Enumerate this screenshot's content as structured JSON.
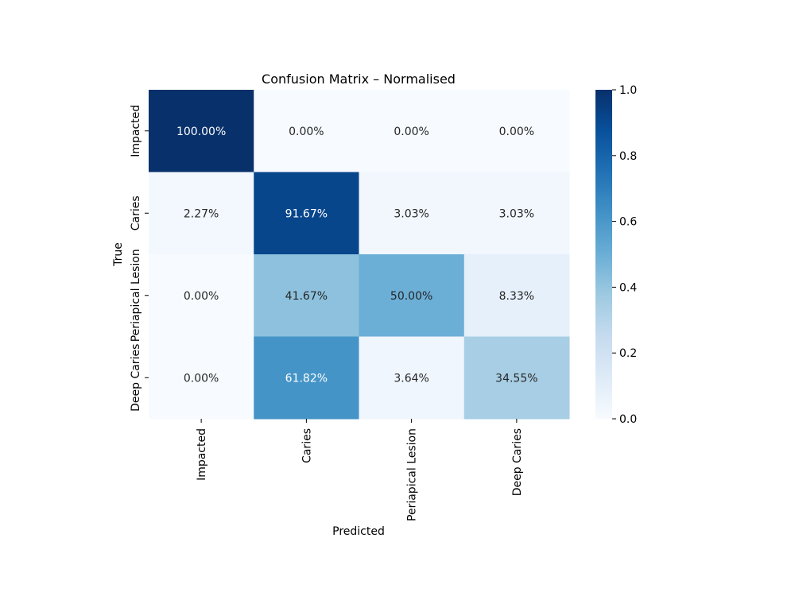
{
  "chart_data": {
    "type": "heatmap",
    "title": "Confusion Matrix – Normalised",
    "xlabel": "Predicted",
    "ylabel": "True",
    "x_categories": [
      "Impacted",
      "Caries",
      "Periapical Lesion",
      "Deep Caries"
    ],
    "y_categories": [
      "Impacted",
      "Caries",
      "Periapical Lesion",
      "Deep Caries"
    ],
    "values": [
      [
        1.0,
        0.0,
        0.0,
        0.0
      ],
      [
        0.0227,
        0.9167,
        0.0303,
        0.0303
      ],
      [
        0.0,
        0.4167,
        0.5,
        0.0833
      ],
      [
        0.0,
        0.6182,
        0.0364,
        0.3455
      ]
    ],
    "cell_labels": [
      [
        "100.00%",
        "0.00%",
        "0.00%",
        "0.00%"
      ],
      [
        "2.27%",
        "91.67%",
        "3.03%",
        "3.03%"
      ],
      [
        "0.00%",
        "41.67%",
        "50.00%",
        "8.33%"
      ],
      [
        "0.00%",
        "61.82%",
        "3.64%",
        "34.55%"
      ]
    ],
    "colormap": "Blues",
    "colorbar": {
      "range": [
        0.0,
        1.0
      ],
      "ticks": [
        0.0,
        0.2,
        0.4,
        0.6,
        0.8,
        1.0
      ],
      "tick_labels": [
        "0.0",
        "0.2",
        "0.4",
        "0.6",
        "0.8",
        "1.0"
      ]
    }
  }
}
